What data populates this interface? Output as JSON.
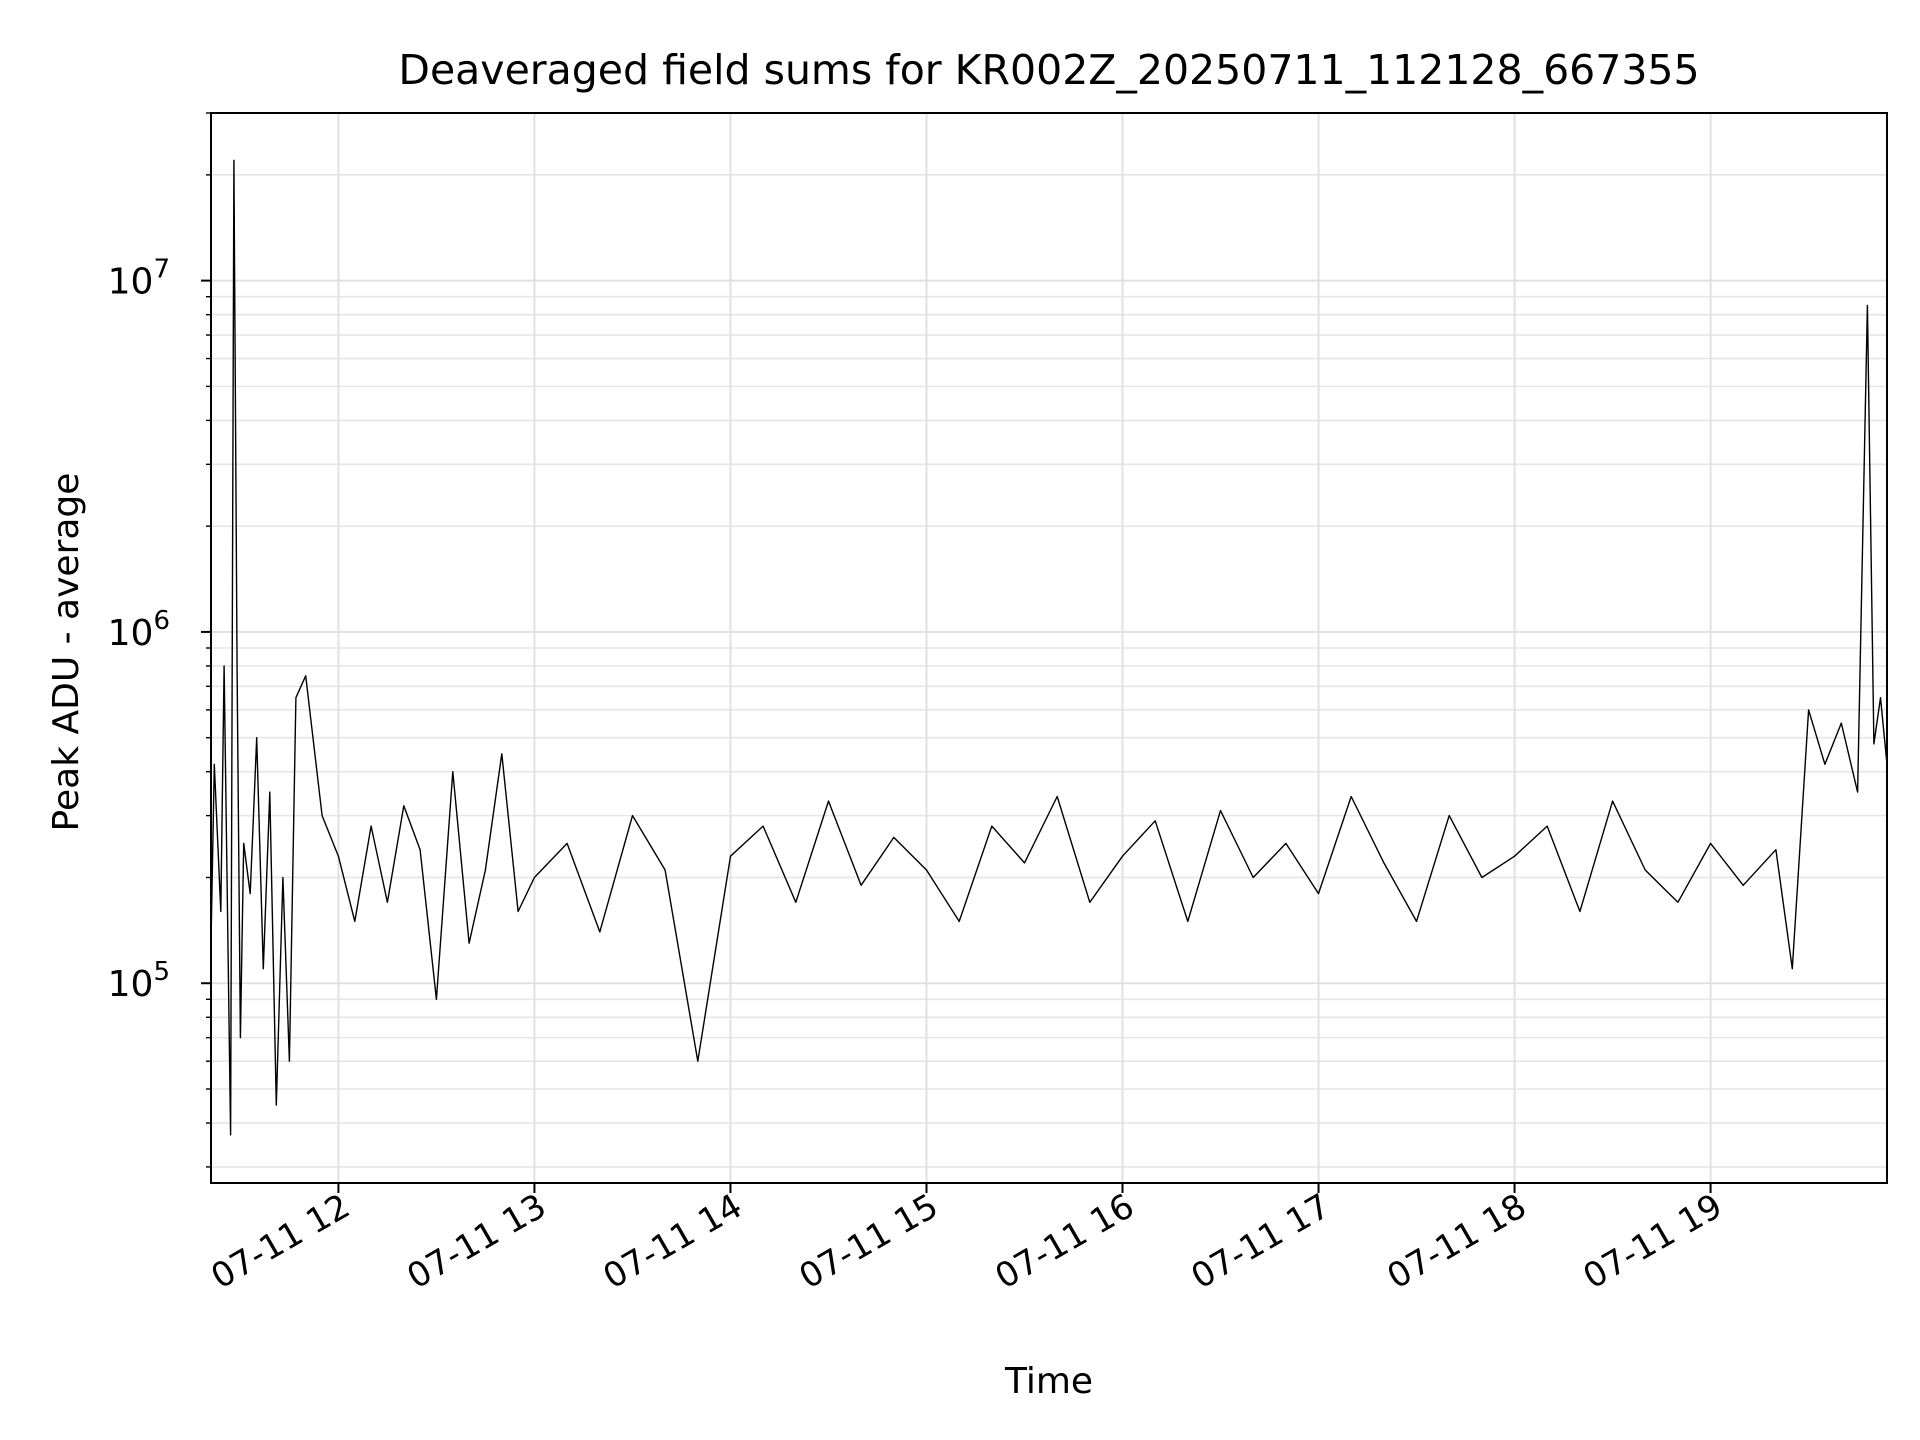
{
  "chart_data": {
    "type": "line",
    "title": "Deaveraged field sums for KR002Z_20250711_112128_667355",
    "xlabel": "Time",
    "ylabel": "Peak ADU - average",
    "yscale": "log",
    "xlim": [
      "2025-07-11 11:21",
      "2025-07-11 19:54"
    ],
    "ylim": [
      27000,
      30000000
    ],
    "x_ticks": [
      "07-11 12",
      "07-11 13",
      "07-11 14",
      "07-11 15",
      "07-11 16",
      "07-11 17",
      "07-11 18",
      "07-11 19"
    ],
    "y_ticks": [
      {
        "value": 100000,
        "base": "10",
        "exp": "5"
      },
      {
        "value": 1000000,
        "base": "10",
        "exp": "6"
      },
      {
        "value": 10000000,
        "base": "10",
        "exp": "7"
      }
    ],
    "grid": true,
    "line_color": "#000000",
    "series": [
      {
        "x": [
          "2025-07-11 11:21",
          "2025-07-11 11:22",
          "2025-07-11 11:24",
          "2025-07-11 11:25",
          "2025-07-11 11:27",
          "2025-07-11 11:28",
          "2025-07-11 11:29",
          "2025-07-11 11:30",
          "2025-07-11 11:31",
          "2025-07-11 11:33",
          "2025-07-11 11:35",
          "2025-07-11 11:37",
          "2025-07-11 11:39",
          "2025-07-11 11:41",
          "2025-07-11 11:43",
          "2025-07-11 11:45",
          "2025-07-11 11:47",
          "2025-07-11 11:50",
          "2025-07-11 11:55",
          "2025-07-11 12:00",
          "2025-07-11 12:05",
          "2025-07-11 12:10",
          "2025-07-11 12:15",
          "2025-07-11 12:20",
          "2025-07-11 12:25",
          "2025-07-11 12:30",
          "2025-07-11 12:35",
          "2025-07-11 12:40",
          "2025-07-11 12:45",
          "2025-07-11 12:50",
          "2025-07-11 12:55",
          "2025-07-11 13:00",
          "2025-07-11 13:10",
          "2025-07-11 13:20",
          "2025-07-11 13:30",
          "2025-07-11 13:40",
          "2025-07-11 13:50",
          "2025-07-11 14:00",
          "2025-07-11 14:10",
          "2025-07-11 14:20",
          "2025-07-11 14:30",
          "2025-07-11 14:40",
          "2025-07-11 14:50",
          "2025-07-11 15:00",
          "2025-07-11 15:10",
          "2025-07-11 15:20",
          "2025-07-11 15:30",
          "2025-07-11 15:40",
          "2025-07-11 15:50",
          "2025-07-11 16:00",
          "2025-07-11 16:10",
          "2025-07-11 16:20",
          "2025-07-11 16:30",
          "2025-07-11 16:40",
          "2025-07-11 16:50",
          "2025-07-11 17:00",
          "2025-07-11 17:10",
          "2025-07-11 17:20",
          "2025-07-11 17:30",
          "2025-07-11 17:40",
          "2025-07-11 17:50",
          "2025-07-11 18:00",
          "2025-07-11 18:10",
          "2025-07-11 18:20",
          "2025-07-11 18:30",
          "2025-07-11 18:40",
          "2025-07-11 18:50",
          "2025-07-11 19:00",
          "2025-07-11 19:10",
          "2025-07-11 19:20",
          "2025-07-11 19:25",
          "2025-07-11 19:30",
          "2025-07-11 19:35",
          "2025-07-11 19:40",
          "2025-07-11 19:45",
          "2025-07-11 19:48",
          "2025-07-11 19:50",
          "2025-07-11 19:52",
          "2025-07-11 19:54"
        ],
        "y": [
          130000,
          420000,
          160000,
          800000,
          37000,
          22000000,
          780000,
          70000,
          250000,
          180000,
          500000,
          110000,
          350000,
          45000,
          200000,
          60000,
          650000,
          750000,
          300000,
          230000,
          150000,
          280000,
          170000,
          320000,
          240000,
          90000,
          400000,
          130000,
          210000,
          450000,
          160000,
          200000,
          250000,
          140000,
          300000,
          210000,
          60000,
          230000,
          280000,
          170000,
          330000,
          190000,
          260000,
          210000,
          150000,
          280000,
          220000,
          340000,
          170000,
          230000,
          290000,
          150000,
          310000,
          200000,
          250000,
          180000,
          340000,
          220000,
          150000,
          300000,
          200000,
          230000,
          280000,
          160000,
          330000,
          210000,
          170000,
          250000,
          190000,
          240000,
          110000,
          600000,
          420000,
          550000,
          350000,
          8500000,
          480000,
          650000,
          420000
        ]
      }
    ]
  }
}
